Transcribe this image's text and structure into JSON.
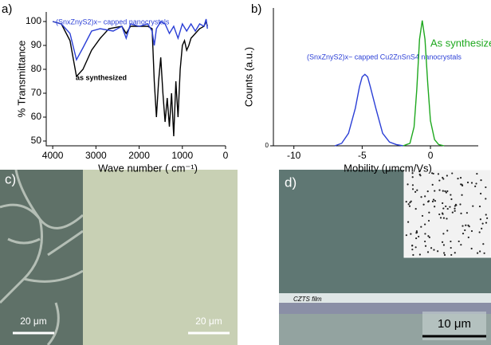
{
  "chart_data": [
    {
      "type": "line",
      "label": "a)",
      "x_label": "Wave number ( cm⁻¹)",
      "y_label": "% Transmittance",
      "xlim": [
        4150,
        0
      ],
      "ylim": [
        48,
        104
      ],
      "xticks": [
        4000,
        3000,
        2000,
        1000,
        0
      ],
      "yticks": [
        50,
        60,
        70,
        80,
        90,
        100
      ],
      "series": [
        {
          "name": "as synthesized",
          "color": "#000000",
          "x": [
            4000,
            3800,
            3600,
            3450,
            3300,
            3100,
            2900,
            2700,
            2400,
            2300,
            2200,
            2000,
            1800,
            1700,
            1650,
            1600,
            1550,
            1500,
            1450,
            1400,
            1350,
            1300,
            1250,
            1200,
            1150,
            1100,
            1050,
            1000,
            950,
            900,
            850,
            800,
            700,
            600,
            500,
            450,
            420
          ],
          "values": [
            100,
            99,
            92,
            77,
            80,
            88,
            93,
            97,
            98,
            95,
            98,
            98,
            98,
            97,
            75,
            60,
            75,
            85,
            70,
            58,
            68,
            56,
            70,
            52,
            75,
            60,
            80,
            90,
            92,
            88,
            90,
            93,
            95,
            97,
            98,
            100,
            98
          ]
        },
        {
          "name": "(SnxZnyS2)x− capped nanocrystals",
          "color": "#2b3fd6",
          "x": [
            4000,
            3800,
            3600,
            3450,
            3300,
            3100,
            2900,
            2600,
            2400,
            2300,
            2200,
            2000,
            1800,
            1700,
            1650,
            1600,
            1500,
            1400,
            1300,
            1200,
            1100,
            1000,
            900,
            800,
            700,
            600,
            500,
            450,
            420
          ],
          "values": [
            100,
            99,
            95,
            84,
            89,
            96,
            97,
            96,
            98,
            93,
            99,
            98,
            99,
            96,
            90,
            97,
            100,
            99,
            95,
            98,
            93,
            99,
            96,
            99,
            96,
            99,
            98,
            101,
            97
          ]
        }
      ]
    },
    {
      "type": "line",
      "label": "b)",
      "x_label": "Mobility (μmcm/Vs)",
      "y_label": "Counts (a.u.)",
      "xlim": [
        -11.5,
        3.5
      ],
      "ylim": [
        0,
        1.1
      ],
      "xticks": [
        -10,
        -5,
        0
      ],
      "yticks": [
        0
      ],
      "series": [
        {
          "name": "(SnxZnyS2)x− capped Cu2ZnSnS4 nanocrystals",
          "color": "#2b3fd6",
          "x": [
            -7,
            -6.5,
            -6,
            -5.5,
            -5.2,
            -5,
            -4.8,
            -4.6,
            -4.4,
            -4,
            -3.5,
            -3,
            -2.5,
            -2
          ],
          "values": [
            0,
            0.02,
            0.1,
            0.3,
            0.47,
            0.55,
            0.57,
            0.55,
            0.47,
            0.3,
            0.1,
            0.03,
            0.01,
            0
          ]
        },
        {
          "name": "As synthesized",
          "color": "#1ea81e",
          "x": [
            -2,
            -1.5,
            -1.2,
            -1,
            -0.8,
            -0.6,
            -0.4,
            -0.2,
            0,
            0.3,
            0.6,
            1
          ],
          "values": [
            0,
            0.02,
            0.15,
            0.45,
            0.85,
            1.0,
            0.85,
            0.5,
            0.2,
            0.05,
            0.01,
            0
          ]
        }
      ]
    }
  ],
  "panels": [
    {
      "label": "c)",
      "scale_left": "20 μm",
      "scale_right": "20 μm"
    },
    {
      "label": "d)",
      "film": "CZTS film",
      "scale": "10 μm"
    }
  ]
}
